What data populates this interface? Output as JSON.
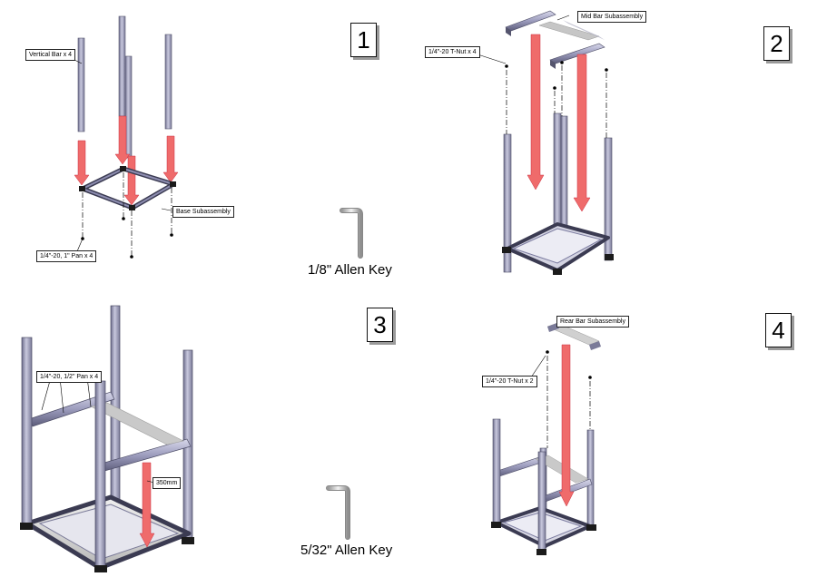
{
  "steps": {
    "step1": {
      "number": "1",
      "callouts": {
        "vertical_bar": "Vertical Bar x 4",
        "base_subassembly": "Base Subassembly",
        "pan_screw": "1/4\"-20, 1\" Pan x 4"
      },
      "tool_label": "1/8\" Allen Key"
    },
    "step2": {
      "number": "2",
      "callouts": {
        "mid_bar_subassembly": "Mid Bar Subassembly",
        "t_nut": "1/4\"-20 T-Nut x 4"
      }
    },
    "step3": {
      "number": "3",
      "callouts": {
        "pan_screw": "1/4\"-20, 1/2\" Pan x 4",
        "measure": "350mm"
      },
      "tool_label": "5/32\" Allen Key"
    },
    "step4": {
      "number": "4",
      "callouts": {
        "rear_bar_subassembly": "Rear Bar Subassembly",
        "t_nut": "1/4\"-20 T-Nut x 2"
      }
    }
  },
  "colors": {
    "extrusion": "#a9a9c7",
    "extrusion_dark": "#4c4c66",
    "arrow": "#ef6b6b",
    "corner": "#1b1b1b",
    "plate": "#d0d0d0"
  }
}
